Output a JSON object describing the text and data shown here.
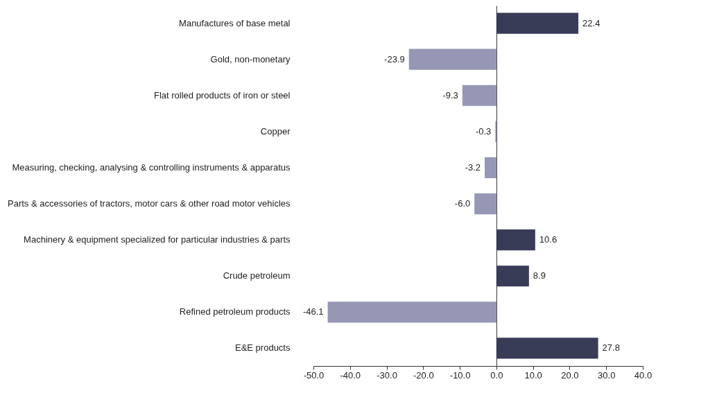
{
  "chart_data": {
    "type": "bar",
    "categories": [
      "Manufactures of base metal",
      "Gold, non-monetary",
      "Flat rolled products of iron or steel",
      "Copper",
      "Measuring, checking, analysing & controlling instruments & apparatus",
      "Parts & accessories of tractors, motor cars & other road motor vehicles",
      "Machinery & equipment specialized for particular industries & parts",
      "Crude petroleum",
      "Refined petroleum products",
      "E&E products"
    ],
    "values": [
      22.4,
      -23.9,
      -9.3,
      -0.3,
      -3.2,
      -6.0,
      10.6,
      8.9,
      -46.1,
      27.8
    ],
    "colors": [
      "#393c57",
      "#9597b4",
      "#9597b4",
      "#9597b4",
      "#9597b4",
      "#9597b4",
      "#393c57",
      "#393c57",
      "#9597b4",
      "#393c57"
    ],
    "value_labels": [
      "22.4",
      "-23.9",
      "-9.3",
      "-0.3",
      "-3.2",
      "-6.0",
      "10.6",
      "8.9",
      "-46.1",
      "27.8"
    ],
    "xlim": [
      -50,
      40
    ],
    "xticks": [
      {
        "value": -50,
        "label": "-50.0"
      },
      {
        "value": -40,
        "label": "-40.0"
      },
      {
        "value": -30,
        "label": "-30.0"
      },
      {
        "value": -20,
        "label": "-20.0"
      },
      {
        "value": -10,
        "label": "-10.0"
      },
      {
        "value": 0,
        "label": "0.0"
      },
      {
        "value": 10,
        "label": "10.0"
      },
      {
        "value": 20,
        "label": "20.0"
      },
      {
        "value": 30,
        "label": "30.0"
      },
      {
        "value": 40,
        "label": "40.0"
      }
    ],
    "orientation": "horizontal"
  }
}
